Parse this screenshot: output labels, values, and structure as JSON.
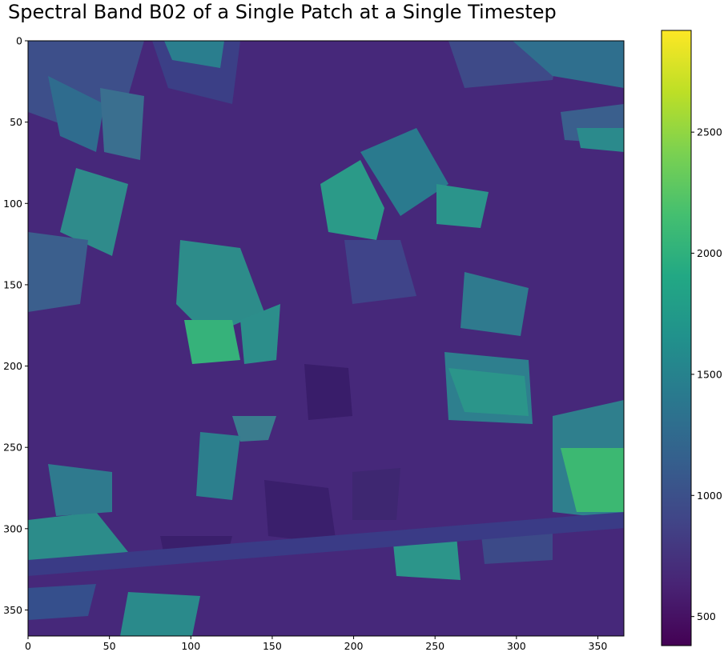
{
  "chart_data": {
    "type": "heatmap",
    "title": "Spectral Band B02 of a Single Patch at a Single Timestep",
    "xlabel": "",
    "ylabel": "",
    "xlim": [
      0,
      366
    ],
    "ylim": [
      366,
      0
    ],
    "x_ticks": [
      0,
      50,
      100,
      150,
      200,
      250,
      300,
      350
    ],
    "y_ticks": [
      0,
      50,
      100,
      150,
      200,
      250,
      300,
      350
    ],
    "colormap": "viridis",
    "colorbar": {
      "vmin": 380,
      "vmax": 2920,
      "ticks": [
        500,
        1000,
        1500,
        2000,
        2500
      ]
    },
    "grid": false
  }
}
